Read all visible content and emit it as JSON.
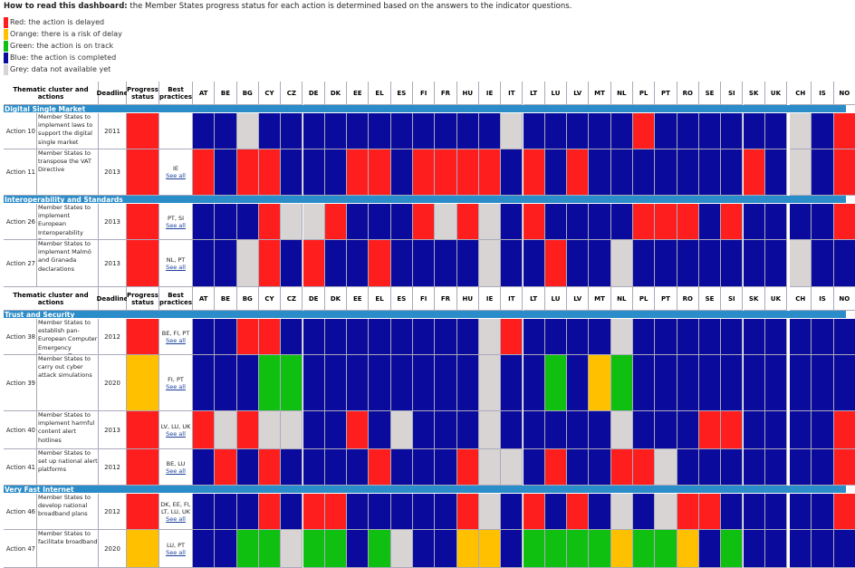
{
  "intro": {
    "bold": "How to read this dashboard:",
    "text": " the Member States progress status for each action is determined based on the answers to the indicator questions."
  },
  "legend": [
    {
      "code": "R",
      "label": "Red: the action is delayed",
      "color": "#ff1e1e"
    },
    {
      "code": "O",
      "label": "Orange: there is a risk of delay",
      "color": "#ffc000"
    },
    {
      "code": "G",
      "label": "Green: the action is on track",
      "color": "#10c010"
    },
    {
      "code": "B",
      "label": "Blue: the action is completed",
      "color": "#0a0a9c"
    },
    {
      "code": "Y",
      "label": "Grey: data not available yet",
      "color": "#d8d4d4"
    }
  ],
  "header": {
    "cluster": "Thematic cluster and actions",
    "deadline": "Deadline",
    "progress": "Progress status",
    "best": "Best practices"
  },
  "countries": [
    "AT",
    "BE",
    "BG",
    "CY",
    "CZ",
    "DE",
    "DK",
    "EE",
    "EL",
    "ES",
    "FI",
    "FR",
    "HU",
    "IE",
    "IT",
    "LT",
    "LU",
    "LV",
    "MT",
    "NL",
    "PL",
    "PT",
    "RO",
    "SE",
    "SI",
    "SK",
    "UK",
    "CH",
    "IS",
    "NO"
  ],
  "see_all": "See all",
  "rows": [
    {
      "type": "section",
      "label": "Digital Single Market"
    },
    {
      "type": "action",
      "id": "Action 10",
      "text": "Member States to implement laws to support the digital single market",
      "deadline": "2011",
      "progress": "R",
      "best": "",
      "see": false,
      "cells": "BBYBBBBBBBBBBBYBBBBBRBBBBBBYBR"
    },
    {
      "type": "action",
      "id": "Action 11",
      "text": "Member States to transpose the VAT Directive",
      "deadline": "2013",
      "progress": "R",
      "best": "IE",
      "see": true,
      "cells": "RBRRBBBRRBRRRRBRBRBBBBBBBRBYBR"
    },
    {
      "type": "section",
      "label": "Interoperability and Standards"
    },
    {
      "type": "action",
      "id": "Action 26",
      "text": "Member States to implement European Interoperability Framework",
      "deadline": "2013",
      "progress": "R",
      "best": "PT, SI",
      "see": true,
      "cells": "BBBRYYRBBBRYRYBRBBBBRRRBRBBBBR"
    },
    {
      "type": "action",
      "id": "Action 27",
      "text": "Member States to implement Malmö and Granada declarations",
      "deadline": "2013",
      "progress": "R",
      "best": "NL, PT",
      "see": true,
      "cells": "BBYRBRBBRBBBBYBBRBBYBBBBBBBYBB"
    },
    {
      "type": "header"
    },
    {
      "type": "section",
      "label": "Trust and Security"
    },
    {
      "type": "action",
      "id": "Action 38",
      "text": "Member States to establish pan-European Computer Emergency Response Teams",
      "deadline": "2012",
      "progress": "R",
      "best": "BE, FI, PT",
      "see": true,
      "cells": "BBRRBBBBBBBBBYRBBBBYBBBBBBBBBB"
    },
    {
      "type": "action",
      "id": "Action 39",
      "text": "Member States to carry out cyber attack simulations",
      "deadline": "2020",
      "progress": "O",
      "best": "FI, PT",
      "see": true,
      "cells": "BBBGGBBBBBBBBYBBGBOGBBBBBBBBBB"
    },
    {
      "type": "action",
      "id": "Action 40",
      "text": "Member States to implement harmful content alert hotlines",
      "deadline": "2013",
      "progress": "R",
      "best": "LV, LU, UK",
      "see": true,
      "cells": "RYRYYBBRBYBBBYBBBBBYBBBRRBBBBR"
    },
    {
      "type": "action",
      "id": "Action 41",
      "text": "Member States to set up national alert platforms",
      "deadline": "2012",
      "progress": "R",
      "best": "BE, LU",
      "see": true,
      "cells": "BRBRBBBBRBBBRYYBRBBRRYBBBBBBBR"
    },
    {
      "type": "section",
      "label": "Very Fast Internet"
    },
    {
      "type": "action",
      "id": "Action 46",
      "text": "Member States to develop national broadband plans",
      "deadline": "2012",
      "progress": "R",
      "best": "DK, EE, FI, LT, LU, UK",
      "see": true,
      "cells": "BBBRBRRBBBBBRYBRBRBYBYRRBBBBBR"
    },
    {
      "type": "action",
      "id": "Action 47",
      "text": "Member States to facilitate broadband",
      "deadline": "2020",
      "progress": "O",
      "best": "LU, PT",
      "see": true,
      "cells": "BBGGYGGBGYBBOOBGGGGOGGOBGBBBBB"
    }
  ]
}
